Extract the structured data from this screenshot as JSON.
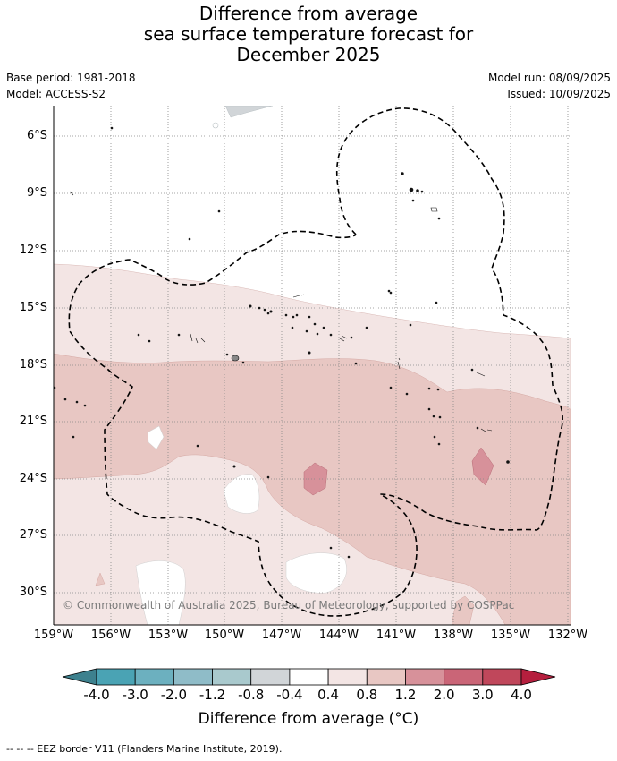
{
  "title": {
    "line1": "Difference from average",
    "line2": "sea surface temperature forecast for",
    "line3": "December 2025"
  },
  "meta": {
    "base_period": "Base period: 1981-2018",
    "model": "Model: ACCESS-S2",
    "model_run": "Model run: 08/09/2025",
    "issued": "Issued: 10/09/2025"
  },
  "map": {
    "lat_labels": [
      "6°S",
      "9°S",
      "12°S",
      "15°S",
      "18°S",
      "21°S",
      "24°S",
      "27°S",
      "30°S"
    ],
    "lon_labels": [
      "159°W",
      "156°W",
      "153°W",
      "150°W",
      "147°W",
      "144°W",
      "141°W",
      "138°W",
      "135°W",
      "132°W"
    ],
    "copyright": "© Commonwealth of Australia 2025, Bureau of Meteorology, supported by COSPPac",
    "legend_text": "--  --  -- EEZ border V11 (Flanders Marine Institute, 2019)."
  },
  "colorbar": {
    "tick_labels": [
      "-4.0",
      "-3.0",
      "-2.0",
      "-1.2",
      "-0.8",
      "-0.4",
      "0.4",
      "0.8",
      "1.2",
      "2.0",
      "3.0",
      "4.0"
    ],
    "label": "Difference from average (°C)",
    "colors": [
      "#3d818e",
      "#4aa3b4",
      "#6cb0bf",
      "#8fbcc8",
      "#a9c9cd",
      "#d1d5d8",
      "#ffffff",
      "#f3e5e4",
      "#e8c7c3",
      "#d7919a",
      "#ca6577",
      "#c0475b",
      "#b51f3e"
    ]
  }
}
